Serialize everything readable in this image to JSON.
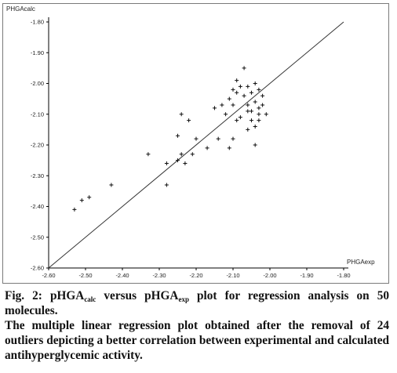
{
  "chart_data": {
    "type": "scatter",
    "xlabel": "PHGAexp",
    "ylabel": "PHGAcalc",
    "xlim": [
      -2.6,
      -1.8
    ],
    "ylim": [
      -2.6,
      -1.8
    ],
    "x_ticks": [
      "-2.60",
      "-2.50",
      "-2.40",
      "-2.30",
      "-2.20",
      "-2.10",
      "-2.00",
      "-1.90",
      "-1.80"
    ],
    "y_ticks": [
      "-1.80",
      "-1.90",
      "-2.00",
      "-2.10",
      "-2.20",
      "-2.30",
      "-2.40",
      "-2.50",
      "-2.60"
    ],
    "regression_line": {
      "x": [
        -2.6,
        -1.8
      ],
      "y": [
        -2.6,
        -1.8
      ]
    },
    "marker": "+",
    "points": [
      {
        "x": -2.53,
        "y": -2.41
      },
      {
        "x": -2.51,
        "y": -2.38
      },
      {
        "x": -2.49,
        "y": -2.37
      },
      {
        "x": -2.43,
        "y": -2.33
      },
      {
        "x": -2.33,
        "y": -2.23
      },
      {
        "x": -2.28,
        "y": -2.33
      },
      {
        "x": -2.28,
        "y": -2.26
      },
      {
        "x": -2.25,
        "y": -2.25
      },
      {
        "x": -2.25,
        "y": -2.17
      },
      {
        "x": -2.24,
        "y": -2.1
      },
      {
        "x": -2.24,
        "y": -2.23
      },
      {
        "x": -2.23,
        "y": -2.26
      },
      {
        "x": -2.22,
        "y": -2.12
      },
      {
        "x": -2.21,
        "y": -2.23
      },
      {
        "x": -2.2,
        "y": -2.18
      },
      {
        "x": -2.17,
        "y": -2.21
      },
      {
        "x": -2.15,
        "y": -2.08
      },
      {
        "x": -2.14,
        "y": -2.18
      },
      {
        "x": -2.13,
        "y": -2.07
      },
      {
        "x": -2.12,
        "y": -2.1
      },
      {
        "x": -2.11,
        "y": -2.05
      },
      {
        "x": -2.11,
        "y": -2.21
      },
      {
        "x": -2.1,
        "y": -2.02
      },
      {
        "x": -2.1,
        "y": -2.07
      },
      {
        "x": -2.1,
        "y": -2.18
      },
      {
        "x": -2.09,
        "y": -1.99
      },
      {
        "x": -2.09,
        "y": -2.03
      },
      {
        "x": -2.09,
        "y": -2.12
      },
      {
        "x": -2.08,
        "y": -2.01
      },
      {
        "x": -2.08,
        "y": -2.11
      },
      {
        "x": -2.07,
        "y": -1.95
      },
      {
        "x": -2.07,
        "y": -2.04
      },
      {
        "x": -2.06,
        "y": -2.01
      },
      {
        "x": -2.06,
        "y": -2.09
      },
      {
        "x": -2.06,
        "y": -2.15
      },
      {
        "x": -2.05,
        "y": -2.03
      },
      {
        "x": -2.05,
        "y": -2.09
      },
      {
        "x": -2.05,
        "y": -2.12
      },
      {
        "x": -2.04,
        "y": -2.0
      },
      {
        "x": -2.04,
        "y": -2.06
      },
      {
        "x": -2.04,
        "y": -2.14
      },
      {
        "x": -2.04,
        "y": -2.2
      },
      {
        "x": -2.03,
        "y": -2.02
      },
      {
        "x": -2.03,
        "y": -2.08
      },
      {
        "x": -2.03,
        "y": -2.1
      },
      {
        "x": -2.03,
        "y": -2.12
      },
      {
        "x": -2.02,
        "y": -2.04
      },
      {
        "x": -2.02,
        "y": -2.07
      },
      {
        "x": -2.01,
        "y": -2.1
      },
      {
        "x": -2.06,
        "y": -2.07
      }
    ]
  },
  "caption": {
    "fig_label": "Fig. 2: pHGA",
    "sub_calc": "calc",
    "versus": " versus pHGA",
    "sub_exp": "exp",
    "rest": " plot for regression analysis on 50 molecules.",
    "description": "The multiple linear regression plot obtained after the removal of 24 outliers depicting a better correlation between experimental and calculated antihyperglycemic activity."
  }
}
